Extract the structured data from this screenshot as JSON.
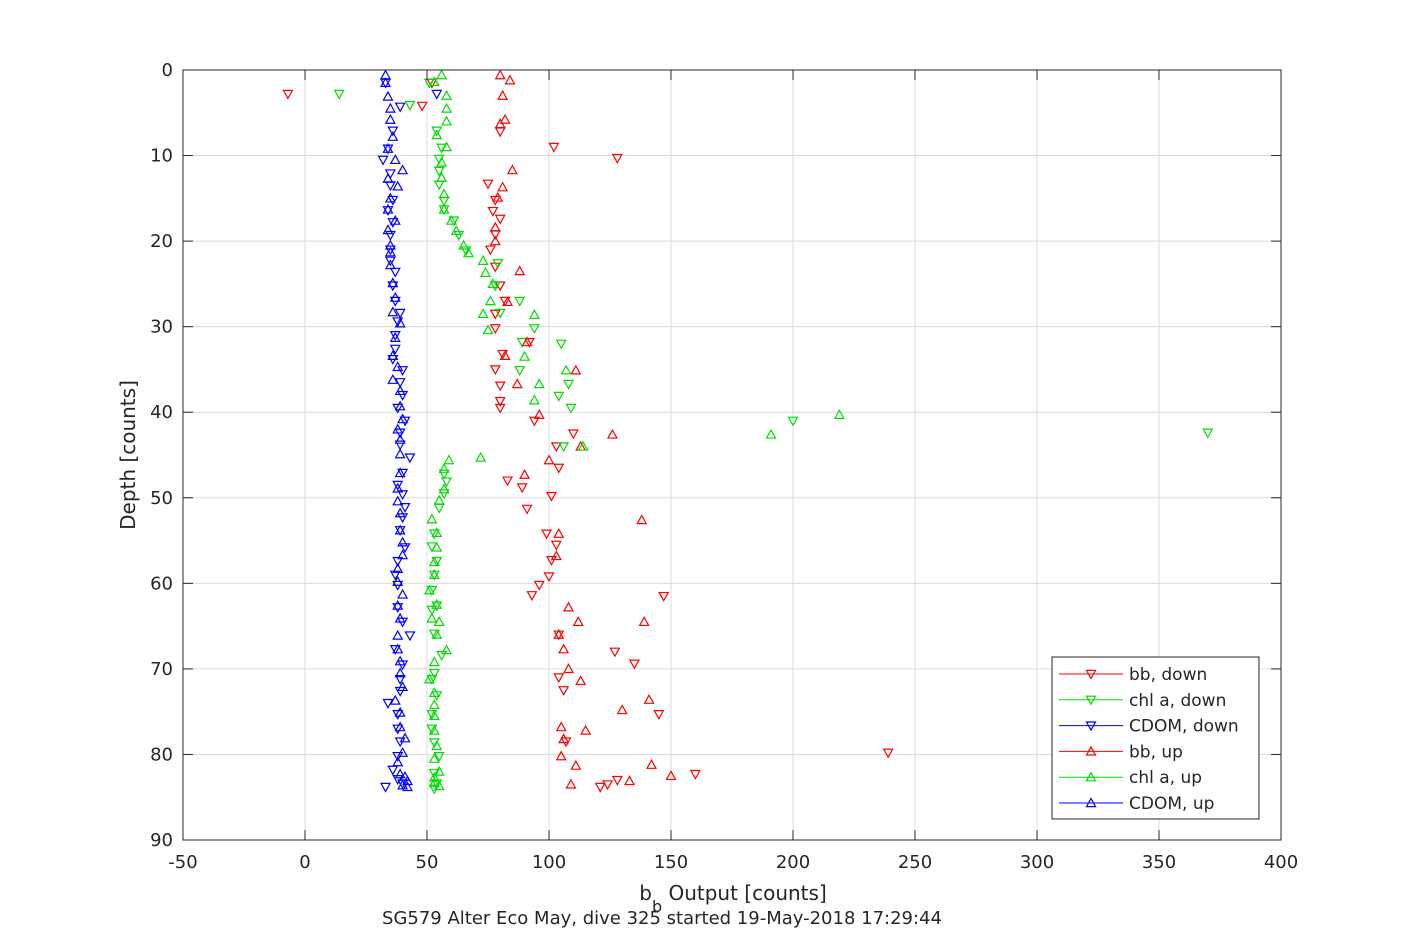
{
  "figure": {
    "xlabel_main": "b",
    "xlabel_sub": "b",
    "xlabel_rest": " Output [counts]",
    "ylabel": "Depth [counts]",
    "caption": "SG579 Alter Eco May, dive 325 started 19-May-2018 17:29:44"
  },
  "legend_labels": [
    "bb, down",
    "chl a, down",
    "CDOM, down",
    "bb, up",
    "chl a, up",
    "CDOM, up"
  ],
  "chart_data": {
    "type": "scatter",
    "xlabel": "b_b Output [counts]",
    "ylabel": "Depth [counts]",
    "xlim": [
      -50,
      400
    ],
    "ylim": [
      0,
      90
    ],
    "y_reversed": true,
    "xticks": [
      -50,
      0,
      50,
      100,
      150,
      200,
      250,
      300,
      350,
      400
    ],
    "yticks": [
      0,
      10,
      20,
      30,
      40,
      50,
      60,
      70,
      80,
      90
    ],
    "grid": true,
    "legend_position": "bottom-right",
    "series": [
      {
        "name": "bb, down",
        "color": "#ff0000",
        "marker": "triangle-down",
        "points": [
          [
            52,
            1.5
          ],
          [
            -7,
            2.8
          ],
          [
            48,
            4.2
          ],
          [
            80,
            7.2
          ],
          [
            102,
            9
          ],
          [
            128,
            10.3
          ],
          [
            75,
            13.3
          ],
          [
            78,
            15.2
          ],
          [
            77,
            16.5
          ],
          [
            80,
            17.4
          ],
          [
            78,
            19.2
          ],
          [
            76,
            21
          ],
          [
            78,
            23
          ],
          [
            80,
            25.2
          ],
          [
            82,
            27
          ],
          [
            78,
            28.5
          ],
          [
            78,
            30.2
          ],
          [
            92,
            31.8
          ],
          [
            81,
            33.2
          ],
          [
            78,
            35
          ],
          [
            80,
            36.9
          ],
          [
            80,
            38.7
          ],
          [
            80,
            39.5
          ],
          [
            94,
            41
          ],
          [
            103,
            44
          ],
          [
            110,
            42.5
          ],
          [
            104,
            46.5
          ],
          [
            83,
            48
          ],
          [
            89,
            48.8
          ],
          [
            101,
            49.8
          ],
          [
            91,
            51.3
          ],
          [
            99,
            54.2
          ],
          [
            103,
            55.5
          ],
          [
            101,
            57.3
          ],
          [
            100,
            59.2
          ],
          [
            96,
            60.2
          ],
          [
            147,
            61.5
          ],
          [
            93,
            61.4
          ],
          [
            104,
            66
          ],
          [
            127,
            68
          ],
          [
            135,
            69.4
          ],
          [
            104,
            71
          ],
          [
            106,
            72.5
          ],
          [
            145,
            75.3
          ],
          [
            107,
            78.5
          ],
          [
            239,
            79.8
          ],
          [
            160,
            82.3
          ],
          [
            128,
            83
          ],
          [
            124,
            83.5
          ],
          [
            121,
            83.8
          ]
        ]
      },
      {
        "name": "chl a, down",
        "color": "#00dd00",
        "marker": "triangle-down",
        "points": [
          [
            51,
            1.5
          ],
          [
            14,
            2.8
          ],
          [
            43,
            4.1
          ],
          [
            54,
            7.1
          ],
          [
            56,
            9.1
          ],
          [
            55,
            10.4
          ],
          [
            55,
            11.8
          ],
          [
            55,
            13.4
          ],
          [
            57,
            15.3
          ],
          [
            57,
            16.3
          ],
          [
            61,
            17.6
          ],
          [
            63,
            19.3
          ],
          [
            66,
            21.1
          ],
          [
            79,
            22.6
          ],
          [
            78,
            25.2
          ],
          [
            88,
            27
          ],
          [
            80,
            28.4
          ],
          [
            94,
            30.2
          ],
          [
            89,
            31.8
          ],
          [
            105,
            32
          ],
          [
            88,
            35.1
          ],
          [
            108,
            36.7
          ],
          [
            104,
            38.1
          ],
          [
            109,
            39.5
          ],
          [
            200,
            41
          ],
          [
            370,
            42.4
          ],
          [
            106,
            44
          ],
          [
            57,
            47.2
          ],
          [
            58,
            48.1
          ],
          [
            57,
            49.5
          ],
          [
            55,
            51.2
          ],
          [
            53,
            54.2
          ],
          [
            52,
            55.7
          ],
          [
            54,
            57.4
          ],
          [
            53,
            59
          ],
          [
            52,
            60.8
          ],
          [
            54,
            62.6
          ],
          [
            52,
            63.1
          ],
          [
            53,
            65.9
          ],
          [
            56,
            68.4
          ],
          [
            53,
            70.5
          ],
          [
            52,
            71.2
          ],
          [
            54,
            73.1
          ],
          [
            52,
            75.3
          ],
          [
            52,
            77
          ],
          [
            53,
            78.6
          ],
          [
            55,
            80.2
          ],
          [
            53,
            82.2
          ],
          [
            54,
            83.4
          ],
          [
            53,
            84
          ]
        ]
      },
      {
        "name": "CDOM, down",
        "color": "#0000ff",
        "marker": "triangle-down",
        "points": [
          [
            33,
            1.5
          ],
          [
            54,
            2.8
          ],
          [
            39,
            4.3
          ],
          [
            36,
            7.1
          ],
          [
            34,
            9.2
          ],
          [
            32,
            10.5
          ],
          [
            35,
            12.1
          ],
          [
            35,
            13.5
          ],
          [
            36,
            15.2
          ],
          [
            34,
            16.4
          ],
          [
            36,
            17.8
          ],
          [
            35,
            19.3
          ],
          [
            35,
            21
          ],
          [
            35,
            22.3
          ],
          [
            37,
            23.6
          ],
          [
            36,
            25.2
          ],
          [
            37,
            27
          ],
          [
            39,
            28.4
          ],
          [
            38,
            29.4
          ],
          [
            37,
            31
          ],
          [
            37,
            32.6
          ],
          [
            36,
            33.8
          ],
          [
            40,
            35.1
          ],
          [
            39,
            36.5
          ],
          [
            40,
            38
          ],
          [
            38,
            39.5
          ],
          [
            41,
            41
          ],
          [
            39,
            42.4
          ],
          [
            39,
            43.8
          ],
          [
            43,
            45.3
          ],
          [
            40,
            47.1
          ],
          [
            38,
            48.5
          ],
          [
            40,
            49.6
          ],
          [
            41,
            51.1
          ],
          [
            40,
            52.3
          ],
          [
            39,
            53.8
          ],
          [
            41,
            55.8
          ],
          [
            38,
            57.4
          ],
          [
            37,
            59
          ],
          [
            38,
            60.2
          ],
          [
            38,
            62.8
          ],
          [
            40,
            64.5
          ],
          [
            43,
            66.1
          ],
          [
            37,
            67.7
          ],
          [
            40,
            69.5
          ],
          [
            39,
            71.2
          ],
          [
            39,
            72.6
          ],
          [
            34,
            74
          ],
          [
            38,
            75.3
          ],
          [
            38,
            77
          ],
          [
            39,
            78.5
          ],
          [
            38,
            80.2
          ],
          [
            36,
            81.8
          ],
          [
            38,
            82.9
          ],
          [
            40,
            83.4
          ],
          [
            33,
            83.8
          ]
        ]
      },
      {
        "name": "bb, up",
        "color": "#ff0000",
        "marker": "triangle-up",
        "points": [
          [
            80,
            0.6
          ],
          [
            84,
            1.2
          ],
          [
            81,
            3
          ],
          [
            82,
            5.8
          ],
          [
            80,
            6.3
          ],
          [
            85,
            11.7
          ],
          [
            81,
            13.7
          ],
          [
            79,
            14.9
          ],
          [
            78,
            18.4
          ],
          [
            78,
            20
          ],
          [
            88,
            23.5
          ],
          [
            83,
            27.1
          ],
          [
            82,
            33.4
          ],
          [
            87,
            36.7
          ],
          [
            91,
            31.8
          ],
          [
            111,
            35.1
          ],
          [
            113,
            44
          ],
          [
            126,
            42.6
          ],
          [
            96,
            40.3
          ],
          [
            100,
            45.6
          ],
          [
            90,
            47.3
          ],
          [
            138,
            52.6
          ],
          [
            104,
            54.2
          ],
          [
            103,
            56.8
          ],
          [
            108,
            62.8
          ],
          [
            112,
            64.5
          ],
          [
            139,
            64.5
          ],
          [
            104,
            66
          ],
          [
            106,
            67.7
          ],
          [
            108,
            70
          ],
          [
            113,
            71.4
          ],
          [
            141,
            73.6
          ],
          [
            130,
            74.8
          ],
          [
            105,
            76.8
          ],
          [
            115,
            77.2
          ],
          [
            106,
            78.2
          ],
          [
            105,
            80.2
          ],
          [
            142,
            81.2
          ],
          [
            111,
            81.3
          ],
          [
            150,
            82.5
          ],
          [
            133,
            83.1
          ],
          [
            109,
            83.5
          ]
        ]
      },
      {
        "name": "chl a, up",
        "color": "#00dd00",
        "marker": "triangle-up",
        "points": [
          [
            56,
            0.6
          ],
          [
            53,
            1.4
          ],
          [
            58,
            3
          ],
          [
            58,
            4.5
          ],
          [
            58,
            6
          ],
          [
            54,
            7.6
          ],
          [
            58,
            9
          ],
          [
            56,
            10.8
          ],
          [
            56,
            12.6
          ],
          [
            57,
            14.5
          ],
          [
            57,
            16.3
          ],
          [
            60,
            17.6
          ],
          [
            62,
            18.8
          ],
          [
            65,
            20.5
          ],
          [
            67,
            21.4
          ],
          [
            73,
            22.3
          ],
          [
            74,
            23.7
          ],
          [
            77,
            25
          ],
          [
            76,
            27
          ],
          [
            73,
            28.5
          ],
          [
            75,
            30.4
          ],
          [
            94,
            28.6
          ],
          [
            90,
            33.5
          ],
          [
            107,
            35.1
          ],
          [
            96,
            36.7
          ],
          [
            94,
            38.6
          ],
          [
            219,
            40.3
          ],
          [
            191,
            42.6
          ],
          [
            114,
            44
          ],
          [
            72,
            45.3
          ],
          [
            59,
            45.6
          ],
          [
            57,
            46.6
          ],
          [
            57,
            49
          ],
          [
            55,
            50.3
          ],
          [
            52,
            52.5
          ],
          [
            54,
            54.1
          ],
          [
            54,
            55.8
          ],
          [
            53,
            57.5
          ],
          [
            53,
            59
          ],
          [
            51,
            60.8
          ],
          [
            54,
            62.5
          ],
          [
            52,
            64.1
          ],
          [
            55,
            64.5
          ],
          [
            54,
            66
          ],
          [
            58,
            67.8
          ],
          [
            53,
            69.2
          ],
          [
            51,
            71.2
          ],
          [
            53,
            72.8
          ],
          [
            53,
            74.2
          ],
          [
            53,
            75.5
          ],
          [
            53,
            77.2
          ],
          [
            54,
            79
          ],
          [
            53,
            80.5
          ],
          [
            55,
            82
          ],
          [
            53,
            82.7
          ],
          [
            53,
            83.3
          ],
          [
            55,
            83.7
          ]
        ]
      },
      {
        "name": "CDOM, up",
        "color": "#0000ff",
        "marker": "triangle-up",
        "points": [
          [
            33,
            0.6
          ],
          [
            33,
            1.5
          ],
          [
            34,
            3.1
          ],
          [
            35,
            4.5
          ],
          [
            35,
            5.8
          ],
          [
            36,
            7.8
          ],
          [
            34,
            9.2
          ],
          [
            37,
            10.5
          ],
          [
            40,
            11.7
          ],
          [
            34,
            12.7
          ],
          [
            38,
            13.6
          ],
          [
            35,
            15
          ],
          [
            34,
            16.3
          ],
          [
            37,
            17.6
          ],
          [
            34,
            18.7
          ],
          [
            35,
            20.5
          ],
          [
            35,
            21.3
          ],
          [
            35,
            22.8
          ],
          [
            36,
            24.9
          ],
          [
            37,
            26.6
          ],
          [
            36,
            28.3
          ],
          [
            39,
            29.6
          ],
          [
            37,
            31.3
          ],
          [
            36,
            33.4
          ],
          [
            38,
            34.7
          ],
          [
            36,
            36.2
          ],
          [
            39,
            37.5
          ],
          [
            39,
            39.3
          ],
          [
            40,
            40.8
          ],
          [
            38,
            42
          ],
          [
            39,
            43.2
          ],
          [
            39,
            44.9
          ],
          [
            39,
            47.1
          ],
          [
            38,
            48.9
          ],
          [
            38,
            50.4
          ],
          [
            39,
            51.8
          ],
          [
            39,
            53.8
          ],
          [
            40,
            55.2
          ],
          [
            40,
            56.7
          ],
          [
            38,
            58.3
          ],
          [
            38,
            59.8
          ],
          [
            40,
            61.3
          ],
          [
            38,
            62.6
          ],
          [
            39,
            64.1
          ],
          [
            38,
            66.1
          ],
          [
            38,
            67.7
          ],
          [
            39,
            69.1
          ],
          [
            39,
            70.5
          ],
          [
            40,
            72.1
          ],
          [
            37,
            73.7
          ],
          [
            39,
            75.1
          ],
          [
            39,
            76.8
          ],
          [
            41,
            78.1
          ],
          [
            40,
            79.8
          ],
          [
            38,
            80.9
          ],
          [
            39,
            82.3
          ],
          [
            41,
            82.6
          ],
          [
            42,
            83.1
          ],
          [
            40,
            83.6
          ],
          [
            42,
            83.8
          ]
        ]
      }
    ]
  }
}
